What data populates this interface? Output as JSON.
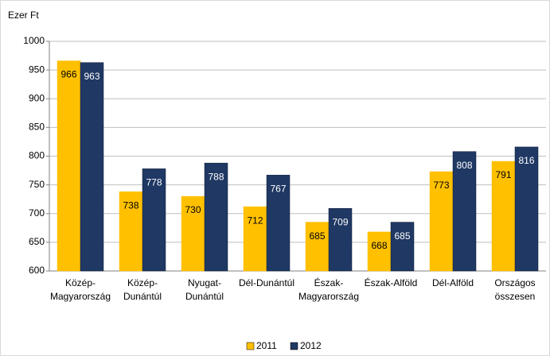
{
  "chart_data": {
    "type": "bar",
    "y_label": "Ezer Ft",
    "categories": [
      [
        "Közép-",
        "Magyarország"
      ],
      [
        "Közép-",
        "Dunántúl"
      ],
      [
        "Nyugat-",
        "Dunántúl"
      ],
      [
        "Dél-Dunántúl"
      ],
      [
        "Észak-",
        "Magyarország"
      ],
      [
        "Észak-Alföld"
      ],
      [
        "Dél-Alföld"
      ],
      [
        "Országos",
        "összesen"
      ]
    ],
    "series": [
      {
        "name": "2011",
        "color": "#ffc000",
        "label_color": "#000000",
        "values": [
          966,
          738,
          730,
          712,
          685,
          668,
          773,
          791
        ]
      },
      {
        "name": "2012",
        "color": "#1f3864",
        "label_color": "#ffffff",
        "values": [
          963,
          778,
          788,
          767,
          709,
          685,
          808,
          816
        ]
      }
    ],
    "ylim": [
      600,
      1000
    ],
    "yticks": [
      600,
      650,
      700,
      750,
      800,
      850,
      900,
      950,
      1000
    ],
    "grid": true,
    "legend": "bottom"
  }
}
